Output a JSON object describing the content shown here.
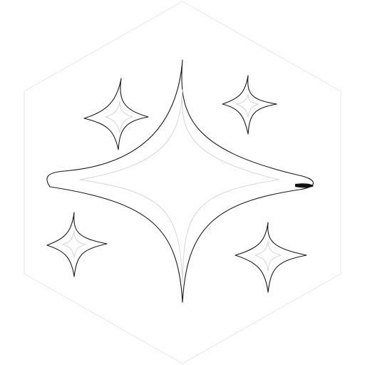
{
  "colors": {
    "background": "#ffffff",
    "stroke": "#1a1a1a",
    "inner_stroke": "#d6d6d6",
    "hexagon_stroke": "#e6e6e6"
  },
  "icons": {
    "main": "sparkle-icon",
    "top_left": "sparkle-icon",
    "top_right": "sparkle-icon",
    "bottom_left": "sparkle-icon",
    "bottom_right": "sparkle-icon",
    "frame": "hexagon-icon"
  }
}
